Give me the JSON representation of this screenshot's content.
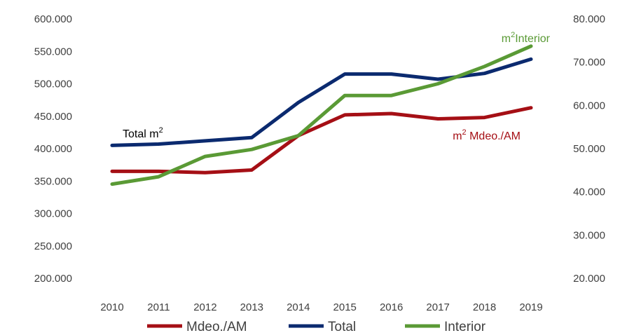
{
  "chart_data": {
    "type": "line",
    "title": "",
    "categories": [
      "2010",
      "2011",
      "2012",
      "2013",
      "2014",
      "2015",
      "2016",
      "2017",
      "2018",
      "2019"
    ],
    "y_left": {
      "range": [
        200000,
        600000
      ],
      "ticks": [
        "200.000",
        "250.000",
        "300.000",
        "350.000",
        "400.000",
        "450.000",
        "500.000",
        "550.000",
        "600.000"
      ]
    },
    "y_right": {
      "range": [
        20000,
        80000
      ],
      "ticks": [
        "20.000",
        "30.000",
        "40.000",
        "50.000",
        "60.000",
        "70.000",
        "80.000"
      ]
    },
    "series": [
      {
        "name": "Mdeo./AM",
        "axis": "left",
        "color": "#a50f15",
        "values": [
          365000,
          365000,
          363000,
          367000,
          420000,
          452000,
          454000,
          446000,
          448000,
          463000
        ]
      },
      {
        "name": "Total",
        "axis": "left",
        "color": "#0b2a6f",
        "values": [
          405000,
          407000,
          412000,
          417000,
          471000,
          515000,
          515000,
          507000,
          516000,
          538000
        ]
      },
      {
        "name": "Interior",
        "axis": "right",
        "color": "#5a9a35",
        "values": [
          41800,
          43500,
          48200,
          49800,
          53000,
          62300,
          62300,
          65000,
          69000,
          73700
        ]
      }
    ],
    "annotations": [
      {
        "text": "Total m",
        "sup": "2",
        "series": "Total"
      },
      {
        "text": "m",
        "sup": "2",
        "text2": " Mdeo./AM",
        "series": "Mdeo./AM"
      },
      {
        "text": "m",
        "sup": "2",
        "text2": "Interior",
        "series": "Interior"
      }
    ],
    "legend": "bottom",
    "grid": false
  }
}
